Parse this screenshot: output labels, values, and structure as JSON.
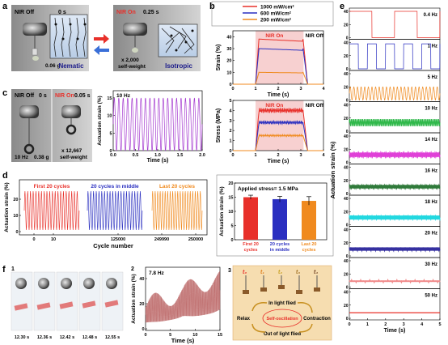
{
  "figure": {
    "a": {
      "label": "a",
      "left": {
        "state": "NIR Off",
        "time": "0 s",
        "mass": "0.06 g",
        "phase": "Nematic"
      },
      "right": {
        "state": "NIR On",
        "time": "0.25 s",
        "mass_line1": "x 2,000",
        "mass_line2": "self-weight",
        "phase": "Isotropic"
      }
    },
    "b": {
      "label": "b",
      "legend": [
        "1000 mW/cm²",
        "600 mW/cm²",
        "200 mW/cm²"
      ],
      "colors": [
        "#e8302a",
        "#2a2fc0",
        "#f08a1e"
      ],
      "nir_on": "NIR On",
      "nir_off": "NIR Off",
      "strain_chart": {
        "ylabel": "Strain (%)",
        "xlabel": "Time (s)",
        "yticks": [
          "0",
          "10",
          "20",
          "30",
          "40"
        ],
        "xticks": [
          "0",
          "1",
          "2",
          "3",
          "4"
        ]
      },
      "stress_chart": {
        "ylabel": "Stress (MPa)",
        "xlabel": "Time (s)",
        "yticks": [
          "0",
          "1",
          "2",
          "3",
          "4",
          "5"
        ],
        "xticks": [
          "0",
          "1",
          "2",
          "3",
          "4"
        ]
      }
    },
    "c": {
      "label": "c",
      "left": {
        "state": "NIR Off",
        "time": "0 s",
        "freq": "10 Hz",
        "mass": "0.38 g"
      },
      "right": {
        "state": "NIR On",
        "time": "0.05 s",
        "mass_line1": "x 12,667",
        "mass_line2": "self-weight"
      },
      "chart": {
        "title": "10 Hz",
        "ylabel": "Actuation strain (%)",
        "xlabel": "Time (s)",
        "yticks": [
          "0",
          "5",
          "10",
          "15"
        ],
        "xticks": [
          "0.0",
          "0.5",
          "1.0",
          "1.5",
          "2.0"
        ]
      }
    },
    "d": {
      "label": "d",
      "ylabel": "Actuation strain (%)",
      "xlabel": "Cycle number",
      "yticks": [
        "0",
        "10",
        "20"
      ],
      "groups": [
        {
          "title": "First 20 cycles",
          "color": "#e8302a",
          "xticks": [
            "0",
            "10"
          ]
        },
        {
          "title": "20 cycles in middle",
          "color": "#2a2fc0",
          "xticks": [
            "125000"
          ]
        },
        {
          "title": "Last 20 cycles",
          "color": "#f08a1e",
          "xticks": [
            "249990",
            "250000"
          ]
        }
      ],
      "bar_chart": {
        "title": "Applied stress= 1.5 MPa",
        "ylabel": "Actuation strain (%)",
        "yticks": [
          "0",
          "5",
          "10",
          "15",
          "20"
        ],
        "categories": [
          [
            "First 20",
            "cycles"
          ],
          [
            "20 cycles",
            "in middle"
          ],
          [
            "Last 20",
            "cycles"
          ]
        ]
      }
    },
    "e": {
      "label": "e",
      "ylabel": "Actuation strain (%)",
      "xlabel": "Time (s)",
      "xticks": [
        "0",
        "1",
        "2",
        "3",
        "4",
        "5"
      ],
      "panels": [
        {
          "freq": "0.4 Hz",
          "color": "#e8302a"
        },
        {
          "freq": "1 Hz",
          "color": "#2a2fc0"
        },
        {
          "freq": "5 Hz",
          "color": "#f08a1e"
        },
        {
          "freq": "10 Hz",
          "color": "#2fb84a"
        },
        {
          "freq": "14 Hz",
          "color": "#e040d8"
        },
        {
          "freq": "16 Hz",
          "color": "#2f7a3a"
        },
        {
          "freq": "18 Hz",
          "color": "#22d8e0"
        },
        {
          "freq": "20 Hz",
          "color": "#3530a0"
        },
        {
          "freq": "30 Hz",
          "color": "#f08a8a"
        },
        {
          "freq": "50 Hz",
          "color": "#e8302a"
        }
      ],
      "yticks": [
        "0",
        "20",
        "40"
      ]
    },
    "f": {
      "label": "f",
      "sub1": "1",
      "sub2": "2",
      "sub3": "3",
      "times": [
        "12.30 s",
        "12.36 s",
        "12.42 s",
        "12.48 s",
        "12.55 s"
      ],
      "chart": {
        "title": "7.8 Hz",
        "ylabel": "Actuation strain (%)",
        "xlabel": "Time (s)",
        "yticks": [
          "0",
          "20",
          "40"
        ],
        "xticks": [
          "0",
          "5",
          "10",
          "15"
        ]
      },
      "schematic": {
        "t_labels": [
          "t₀",
          "t₁",
          "t₂",
          "t₃",
          "t₄"
        ],
        "in_light": "In light flied",
        "relax": "Relax",
        "center": "Self-oscillation",
        "contraction": "Contraction",
        "out_light": "Out of light flied"
      }
    }
  },
  "chart_data": [
    {
      "type": "line",
      "panel": "b-strain",
      "series": [
        {
          "name": "1000 mW/cm²",
          "plateau": 38
        },
        {
          "name": "600 mW/cm²",
          "plateau": 30
        },
        {
          "name": "200 mW/cm²",
          "plateau": 10
        }
      ],
      "xlim": [
        0,
        4
      ],
      "ylim": [
        0,
        45
      ]
    },
    {
      "type": "line",
      "panel": "b-stress",
      "series": [
        {
          "name": "1000 mW/cm²",
          "plateau": 4.0
        },
        {
          "name": "600 mW/cm²",
          "plateau": 2.8
        },
        {
          "name": "200 mW/cm²",
          "plateau": 1.5
        }
      ],
      "xlim": [
        0,
        4
      ],
      "ylim": [
        0,
        5
      ]
    },
    {
      "type": "line",
      "panel": "c",
      "frequency": 10,
      "amplitude": 15,
      "xlim": [
        0,
        2
      ],
      "ylim": [
        0,
        17
      ]
    },
    {
      "type": "bar",
      "panel": "d",
      "categories": [
        "First 20 cycles",
        "20 cycles in middle",
        "Last 20 cycles"
      ],
      "values": [
        15,
        14.3,
        13.7
      ],
      "errors": [
        0.7,
        1.0,
        1.5
      ],
      "ylim": [
        0,
        20
      ]
    },
    {
      "type": "line",
      "panel": "e",
      "frequencies": [
        0.4,
        1,
        5,
        10,
        14,
        16,
        18,
        20,
        30,
        50
      ],
      "amplitudes": [
        40,
        38,
        20,
        10,
        7,
        5,
        6,
        5,
        2,
        1
      ],
      "xlim": [
        0,
        5
      ],
      "ylim": [
        0,
        45
      ]
    },
    {
      "type": "line",
      "panel": "f2",
      "frequency": 7.8,
      "xlim": [
        0,
        15
      ],
      "ylim": [
        0,
        50
      ]
    }
  ]
}
